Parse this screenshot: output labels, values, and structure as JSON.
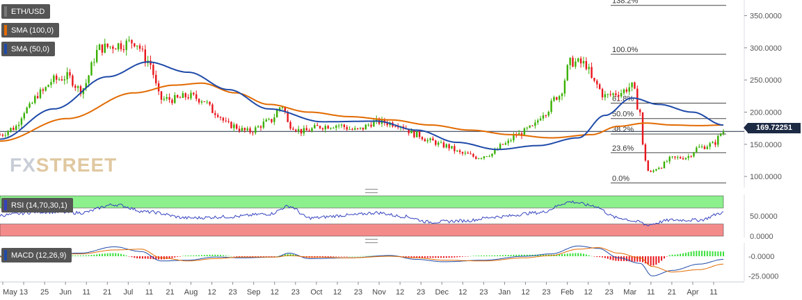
{
  "symbol": "ETH/USD",
  "watermark": {
    "a": "FX",
    "b": "STREET"
  },
  "legends": {
    "price": "ETH/USD",
    "sma100": "SMA (100,0)",
    "sma50": "SMA (50,0)",
    "rsi": "RSI (14,70,30,1)",
    "macd": "MACD (12,26,9)"
  },
  "colors": {
    "up": "#38b000",
    "down": "#e8141a",
    "sma100": "#e26a00",
    "sma50": "#1f4aa8",
    "rsi_line": "#3342c0",
    "rsi_overbought": "#8cf08c",
    "rsi_oversold": "#f48b8b",
    "macd_line": "#1f4aa8",
    "signal_line": "#e26a00",
    "hist_up": "#39e039",
    "hist_down": "#e8141a",
    "price_label": "#1d2a44"
  },
  "current_price": "169.72251",
  "chart_data": [
    {
      "type": "candlestick",
      "title": "ETH/USD",
      "ylim": [
        85,
        370
      ],
      "y_ticks": [
        "350.0000",
        "300.0000",
        "250.0000",
        "200.0000",
        "150.0000",
        "100.0000"
      ],
      "x_ticks": [
        "May",
        "13",
        "25",
        "Jun",
        "11",
        "21",
        "Jul",
        "11",
        "21",
        "Aug",
        "12",
        "23",
        "Sep",
        "12",
        "23",
        "Oct",
        "12",
        "23",
        "Nov",
        "12",
        "23",
        "Dec",
        "12",
        "23",
        "Jan",
        "12",
        "23",
        "Feb",
        "12",
        "23",
        "Mar",
        "11",
        "21",
        "Apr",
        "11"
      ],
      "fibonacci": [
        {
          "label": "138.2%",
          "value": 366
        },
        {
          "label": "100.0%",
          "value": 290
        },
        {
          "label": "61.8%",
          "value": 214
        },
        {
          "label": "50.0%",
          "value": 190
        },
        {
          "label": "38.2%",
          "value": 166
        },
        {
          "label": "23.6%",
          "value": 137
        },
        {
          "label": "0.0%",
          "value": 90
        }
      ],
      "price_anchors": [
        [
          0,
          165
        ],
        [
          10,
          175
        ],
        [
          20,
          205
        ],
        [
          30,
          230
        ],
        [
          40,
          250
        ],
        [
          50,
          255
        ],
        [
          60,
          235
        ],
        [
          75,
          300
        ],
        [
          90,
          305
        ],
        [
          100,
          310
        ],
        [
          110,
          280
        ],
        [
          120,
          220
        ],
        [
          130,
          220
        ],
        [
          140,
          225
        ],
        [
          150,
          220
        ],
        [
          160,
          200
        ],
        [
          170,
          180
        ],
        [
          185,
          170
        ],
        [
          200,
          185
        ],
        [
          210,
          210
        ],
        [
          215,
          180
        ],
        [
          225,
          170
        ],
        [
          240,
          178
        ],
        [
          250,
          180
        ],
        [
          265,
          172
        ],
        [
          280,
          185
        ],
        [
          295,
          182
        ],
        [
          310,
          165
        ],
        [
          320,
          155
        ],
        [
          330,
          148
        ],
        [
          345,
          135
        ],
        [
          355,
          130
        ],
        [
          365,
          135
        ],
        [
          375,
          150
        ],
        [
          385,
          165
        ],
        [
          395,
          175
        ],
        [
          405,
          200
        ],
        [
          415,
          225
        ],
        [
          425,
          278
        ],
        [
          435,
          275
        ],
        [
          442,
          245
        ],
        [
          450,
          225
        ],
        [
          460,
          230
        ],
        [
          470,
          240
        ],
        [
          476,
          200
        ],
        [
          479,
          130
        ],
        [
          483,
          105
        ],
        [
          490,
          115
        ],
        [
          500,
          128
        ],
        [
          510,
          130
        ],
        [
          520,
          145
        ],
        [
          530,
          150
        ],
        [
          538,
          170
        ]
      ],
      "sma100_anchors": [
        [
          0,
          155
        ],
        [
          50,
          190
        ],
        [
          100,
          230
        ],
        [
          130,
          242
        ],
        [
          150,
          245
        ],
        [
          175,
          230
        ],
        [
          200,
          212
        ],
        [
          230,
          200
        ],
        [
          260,
          193
        ],
        [
          290,
          188
        ],
        [
          320,
          180
        ],
        [
          350,
          172
        ],
        [
          380,
          165
        ],
        [
          410,
          160
        ],
        [
          440,
          165
        ],
        [
          460,
          178
        ],
        [
          480,
          183
        ],
        [
          500,
          180
        ],
        [
          520,
          179
        ],
        [
          538,
          180
        ]
      ],
      "sma50_anchors": [
        [
          0,
          158
        ],
        [
          40,
          205
        ],
        [
          80,
          255
        ],
        [
          110,
          278
        ],
        [
          140,
          262
        ],
        [
          170,
          235
        ],
        [
          200,
          205
        ],
        [
          240,
          185
        ],
        [
          280,
          186
        ],
        [
          310,
          172
        ],
        [
          340,
          153
        ],
        [
          370,
          142
        ],
        [
          400,
          148
        ],
        [
          430,
          160
        ],
        [
          450,
          195
        ],
        [
          470,
          222
        ],
        [
          490,
          212
        ],
        [
          515,
          200
        ],
        [
          538,
          180
        ]
      ]
    },
    {
      "type": "line",
      "title": "RSI (14,70,30,1)",
      "ylim": [
        0,
        100
      ],
      "y_ticks": [
        "50.0000",
        "0.0000"
      ],
      "anchors": [
        [
          0,
          52
        ],
        [
          30,
          60
        ],
        [
          60,
          58
        ],
        [
          85,
          78
        ],
        [
          110,
          60
        ],
        [
          140,
          45
        ],
        [
          170,
          48
        ],
        [
          200,
          55
        ],
        [
          215,
          74
        ],
        [
          230,
          45
        ],
        [
          260,
          52
        ],
        [
          280,
          58
        ],
        [
          300,
          49
        ],
        [
          320,
          35
        ],
        [
          345,
          38
        ],
        [
          370,
          48
        ],
        [
          400,
          58
        ],
        [
          425,
          85
        ],
        [
          440,
          76
        ],
        [
          460,
          45
        ],
        [
          476,
          35
        ],
        [
          480,
          28
        ],
        [
          500,
          40
        ],
        [
          520,
          40
        ],
        [
          538,
          58
        ]
      ]
    },
    {
      "type": "macd",
      "title": "MACD (12,26,9)",
      "ylim": [
        -30,
        15
      ],
      "y_ticks": [
        "-0.0000",
        "-25.0000"
      ],
      "macd_anchors": [
        [
          0,
          0
        ],
        [
          30,
          3
        ],
        [
          60,
          4
        ],
        [
          85,
          12
        ],
        [
          105,
          6
        ],
        [
          120,
          -6
        ],
        [
          140,
          -5
        ],
        [
          160,
          -1
        ],
        [
          180,
          -2
        ],
        [
          205,
          -1
        ],
        [
          215,
          4
        ],
        [
          230,
          -3
        ],
        [
          260,
          -2
        ],
        [
          290,
          1
        ],
        [
          310,
          -4
        ],
        [
          330,
          -7
        ],
        [
          360,
          -5
        ],
        [
          390,
          0
        ],
        [
          410,
          3
        ],
        [
          430,
          13
        ],
        [
          445,
          10
        ],
        [
          460,
          -2
        ],
        [
          476,
          -9
        ],
        [
          485,
          -25
        ],
        [
          500,
          -18
        ],
        [
          520,
          -10
        ],
        [
          538,
          -4
        ]
      ],
      "signal_anchors": [
        [
          0,
          -1
        ],
        [
          30,
          2
        ],
        [
          60,
          3
        ],
        [
          85,
          8
        ],
        [
          105,
          9
        ],
        [
          120,
          -2
        ],
        [
          140,
          -6
        ],
        [
          160,
          -3
        ],
        [
          180,
          -1
        ],
        [
          205,
          -1
        ],
        [
          215,
          1
        ],
        [
          230,
          -1
        ],
        [
          260,
          -2
        ],
        [
          290,
          0
        ],
        [
          310,
          -2
        ],
        [
          330,
          -5
        ],
        [
          360,
          -6
        ],
        [
          390,
          -2
        ],
        [
          410,
          1
        ],
        [
          430,
          9
        ],
        [
          445,
          11
        ],
        [
          460,
          4
        ],
        [
          476,
          -2
        ],
        [
          485,
          -13
        ],
        [
          500,
          -20
        ],
        [
          520,
          -17
        ],
        [
          538,
          -10
        ]
      ]
    }
  ]
}
